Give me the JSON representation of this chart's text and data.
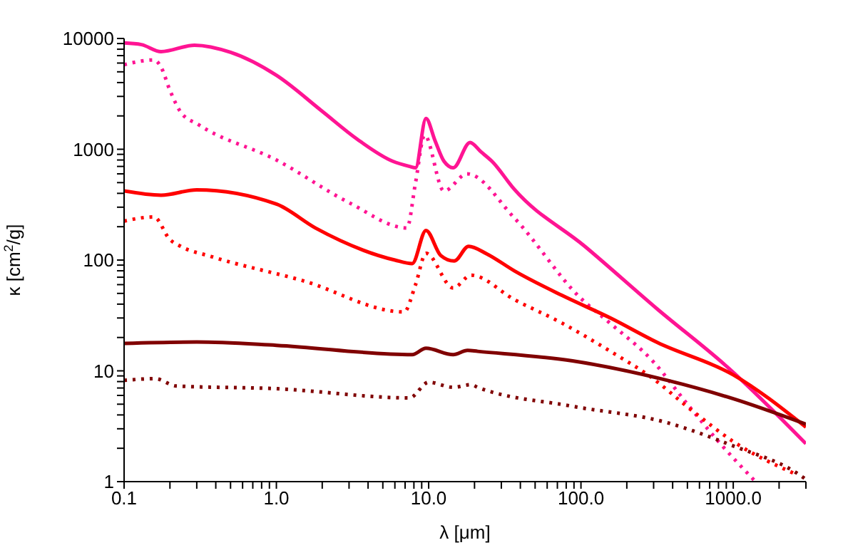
{
  "chart_data": {
    "type": "line",
    "xlabel": "λ [μm]",
    "ylabel": "κ [cm$^{2}$/g]",
    "log": "xy",
    "marker": "none",
    "xlim": [
      0.1,
      3000
    ],
    "ylim": [
      1,
      10000
    ],
    "xticks": [
      0.1,
      {
        "value": 0.2,
        "label": null
      },
      {
        "value": 0.3,
        "label": null
      },
      {
        "value": 0.4,
        "label": null
      },
      {
        "value": 0.5,
        "label": null
      },
      {
        "value": 0.6,
        "label": null
      },
      {
        "value": 0.7,
        "label": null
      },
      {
        "value": 0.8,
        "label": null
      },
      {
        "value": 0.9,
        "label": null
      },
      {
        "value": 1,
        "label": "1.0"
      },
      {
        "value": 2,
        "label": null
      },
      {
        "value": 3,
        "label": null
      },
      {
        "value": 4,
        "label": null
      },
      {
        "value": 5,
        "label": null
      },
      {
        "value": 6,
        "label": null
      },
      {
        "value": 7,
        "label": null
      },
      {
        "value": 8,
        "label": null
      },
      {
        "value": 9,
        "label": null
      },
      {
        "value": 10,
        "label": "10.0"
      },
      {
        "value": 20,
        "label": null
      },
      {
        "value": 30,
        "label": null
      },
      {
        "value": 40,
        "label": null
      },
      {
        "value": 50,
        "label": null
      },
      {
        "value": 60,
        "label": null
      },
      {
        "value": 70,
        "label": null
      },
      {
        "value": 80,
        "label": null
      },
      {
        "value": 90,
        "label": null
      },
      {
        "value": 100,
        "label": "100.0"
      },
      {
        "value": 200,
        "label": null
      },
      {
        "value": 300,
        "label": null
      },
      {
        "value": 400,
        "label": null
      },
      {
        "value": 500,
        "label": null
      },
      {
        "value": 600,
        "label": null
      },
      {
        "value": 700,
        "label": null
      },
      {
        "value": 800,
        "label": null
      },
      {
        "value": 900,
        "label": null
      },
      {
        "value": 1000,
        "label": "1000.0"
      },
      {
        "value": 2000,
        "label": null
      },
      {
        "value": 3000,
        "label": null
      }
    ],
    "yticks": [
      1,
      {
        "value": 2,
        "label": null
      },
      {
        "value": 3,
        "label": null
      },
      {
        "value": 4,
        "label": null
      },
      {
        "value": 5,
        "label": null
      },
      {
        "value": 6,
        "label": null
      },
      {
        "value": 7,
        "label": null
      },
      {
        "value": 8,
        "label": null
      },
      {
        "value": 9,
        "label": null
      },
      10,
      {
        "value": 20,
        "label": null
      },
      {
        "value": 30,
        "label": null
      },
      {
        "value": 40,
        "label": null
      },
      {
        "value": 50,
        "label": null
      },
      {
        "value": 60,
        "label": null
      },
      {
        "value": 70,
        "label": null
      },
      {
        "value": 80,
        "label": null
      },
      {
        "value": 90,
        "label": null
      },
      100,
      {
        "value": 200,
        "label": null
      },
      {
        "value": 300,
        "label": null
      },
      {
        "value": 400,
        "label": null
      },
      {
        "value": 500,
        "label": null
      },
      {
        "value": 600,
        "label": null
      },
      {
        "value": 700,
        "label": null
      },
      {
        "value": 800,
        "label": null
      },
      {
        "value": 900,
        "label": null
      },
      1000,
      {
        "value": 2000,
        "label": null
      },
      {
        "value": 3000,
        "label": null
      },
      {
        "value": 4000,
        "label": null
      },
      {
        "value": 5000,
        "label": null
      },
      {
        "value": 6000,
        "label": null
      },
      {
        "value": 7000,
        "label": null
      },
      {
        "value": 8000,
        "label": null
      },
      {
        "value": 9000,
        "label": null
      },
      10000
    ],
    "series": [
      {
        "color": "#ff1493",
        "line_style": "solid",
        "x": [
          0.1,
          0.13,
          0.175,
          0.29,
          0.5,
          1,
          2,
          3.4,
          5.8,
          7.5,
          8.2,
          9.6,
          11,
          12.6,
          14.5,
          18.7,
          22,
          26,
          36.5,
          106,
          318,
          945,
          3000
        ],
        "values": [
          9100,
          8800,
          7600,
          8700,
          7500,
          4650,
          2200,
          1230,
          780,
          700,
          680,
          1900,
          1200,
          780,
          680,
          1150,
          950,
          780,
          435,
          133,
          36,
          10.4,
          2.2
        ]
      },
      {
        "color": "#ff1493",
        "line_style": "dotted",
        "x": [
          0.1,
          0.157,
          0.175,
          0.2,
          0.235,
          0.31,
          1,
          3,
          7.2,
          8.2,
          9.4,
          12.6,
          17.9,
          36.5,
          100,
          150,
          300,
          500,
          800,
          1400
        ],
        "values": [
          5800,
          6400,
          5500,
          3400,
          2170,
          1660,
          800,
          330,
          195,
          500,
          1340,
          420,
          600,
          240,
          45,
          28,
          12,
          5,
          2.3,
          1
        ]
      },
      {
        "color": "#ff0000",
        "line_style": "solid",
        "x": [
          0.1,
          0.175,
          0.3,
          1,
          1.8,
          6,
          7.8,
          9.6,
          12,
          14.7,
          18.3,
          24,
          36.5,
          75,
          156,
          318,
          1000,
          3000
        ],
        "values": [
          420,
          385,
          430,
          320,
          195,
          100,
          93,
          185,
          110,
          98,
          133,
          114,
          80,
          48,
          30,
          18,
          9.2,
          3.1
        ]
      },
      {
        "color": "#ff0000",
        "line_style": "dotted",
        "x": [
          0.1,
          0.157,
          0.2,
          0.235,
          0.37,
          1.5,
          6.9,
          8.2,
          9.6,
          14.5,
          19,
          36.5,
          75,
          156,
          275,
          570,
          1000,
          2600
        ],
        "values": [
          225,
          245,
          153,
          133,
          108,
          65,
          34,
          60,
          115,
          56,
          73,
          44,
          27,
          15,
          9.2,
          4.1,
          2.3,
          1.16
        ]
      },
      {
        "color": "#800000",
        "line_style": "solid",
        "x": [
          0.1,
          0.3,
          1,
          7.8,
          9.6,
          14.5,
          18,
          21,
          88,
          370,
          1000,
          3000
        ],
        "values": [
          17.7,
          18.2,
          17,
          14,
          16,
          14,
          15.3,
          15,
          12.3,
          8.2,
          5.6,
          3.3
        ]
      },
      {
        "color": "#800000",
        "line_style": "dotted",
        "x": [
          0.1,
          0.16,
          0.22,
          1,
          7.5,
          10,
          14.5,
          19,
          21,
          87,
          370,
          1000,
          2600,
          3000
        ],
        "values": [
          8.2,
          8.5,
          7.3,
          6.9,
          5.7,
          7.9,
          7.1,
          7.5,
          7.1,
          4.8,
          3.4,
          2.1,
          1.2,
          1.05
        ]
      }
    ]
  }
}
